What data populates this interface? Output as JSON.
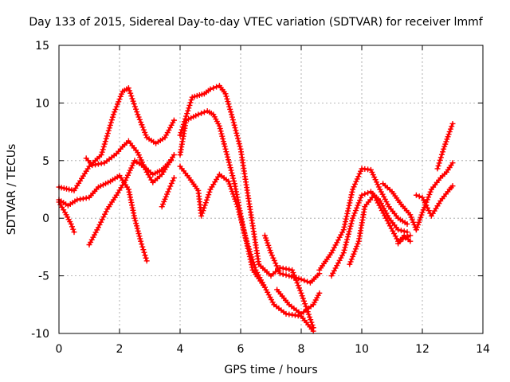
{
  "chart_data": {
    "type": "scatter",
    "title": "Day 133 of 2015, Sidereal Day-to-day VTEC variation (SDTVAR) for receiver lmmf",
    "xlabel": "GPS time / hours",
    "ylabel": "SDTVAR / TECUs",
    "xlim": [
      0,
      14
    ],
    "ylim": [
      -10,
      15
    ],
    "xticks": [
      "0",
      "2",
      "4",
      "6",
      "8",
      "10",
      "12",
      "14"
    ],
    "yticks": [
      "-10",
      "-5",
      "0",
      "5",
      "10",
      "15"
    ],
    "grid": true,
    "marker": "+",
    "color": "#ff0000",
    "series": [
      {
        "x": [
          0.0,
          0.5,
          1.0,
          1.4,
          1.8,
          2.1,
          2.3,
          2.6,
          2.9,
          3.2,
          3.5,
          3.8
        ],
        "y": [
          2.7,
          2.4,
          4.5,
          5.5,
          9.0,
          11.0,
          11.3,
          9.0,
          7.0,
          6.5,
          7.0,
          8.5
        ]
      },
      {
        "x": [
          0.9,
          1.1,
          1.5,
          1.9,
          2.1,
          2.3,
          2.6,
          2.9,
          3.1,
          3.4,
          3.8
        ],
        "y": [
          5.2,
          4.6,
          4.8,
          5.6,
          6.2,
          6.7,
          5.7,
          4.0,
          3.1,
          3.8,
          5.5
        ]
      },
      {
        "x": [
          0.0,
          0.3,
          0.6,
          1.0,
          1.3,
          1.7,
          2.0,
          2.3,
          2.5,
          2.7,
          2.9
        ],
        "y": [
          1.6,
          1.1,
          1.6,
          1.8,
          2.7,
          3.2,
          3.7,
          2.5,
          0.0,
          -2.0,
          -3.7
        ]
      },
      {
        "x": [
          0.0,
          0.2,
          0.4,
          0.5
        ],
        "y": [
          1.4,
          0.5,
          -0.5,
          -1.2
        ]
      },
      {
        "x": [
          1.0,
          1.3,
          1.6,
          1.9,
          2.2,
          2.5,
          2.8,
          3.1,
          3.4,
          3.7
        ],
        "y": [
          -2.3,
          -0.8,
          0.8,
          2.0,
          3.3,
          5.0,
          4.5,
          3.8,
          4.2,
          5.0
        ]
      },
      {
        "x": [
          3.4,
          3.6,
          3.8
        ],
        "y": [
          1.0,
          2.3,
          3.5
        ]
      },
      {
        "x": [
          4.0,
          4.4,
          4.8,
          5.0,
          5.3,
          5.5,
          5.7,
          6.0,
          6.3,
          6.6,
          7.0,
          7.3,
          7.7,
          8.0,
          8.4
        ],
        "y": [
          7.2,
          10.5,
          10.8,
          11.2,
          11.5,
          10.8,
          9.0,
          6.0,
          1.0,
          -4.0,
          -5.0,
          -4.3,
          -4.5,
          -6.5,
          -9.5
        ]
      },
      {
        "x": [
          4.0,
          4.2,
          4.6,
          4.9,
          5.1,
          5.3,
          5.5,
          5.8,
          6.1,
          6.4,
          6.8,
          7.1,
          7.5,
          8.0,
          8.4
        ],
        "y": [
          5.5,
          8.5,
          9.0,
          9.3,
          9.0,
          8.0,
          6.0,
          3.0,
          -1.0,
          -4.5,
          -6.0,
          -7.5,
          -8.3,
          -8.5,
          -9.8
        ]
      },
      {
        "x": [
          4.0,
          4.3,
          4.6,
          4.7,
          5.0,
          5.3,
          5.6,
          5.9,
          6.2,
          6.5,
          6.8
        ],
        "y": [
          4.5,
          3.5,
          2.4,
          0.2,
          2.5,
          3.8,
          3.2,
          1.0,
          -2.0,
          -4.5,
          -6.0
        ]
      },
      {
        "x": [
          6.8,
          7.0,
          7.3,
          7.6,
          8.0,
          8.3,
          8.6
        ],
        "y": [
          -1.5,
          -3.0,
          -4.8,
          -5.0,
          -5.3,
          -5.6,
          -4.8
        ]
      },
      {
        "x": [
          7.2,
          7.6,
          8.0,
          8.4,
          8.6
        ],
        "y": [
          -6.2,
          -7.5,
          -8.3,
          -7.5,
          -6.5
        ]
      },
      {
        "x": [
          8.6,
          9.0,
          9.4,
          9.7,
          10.0,
          10.3,
          10.6,
          10.9,
          11.2,
          11.5
        ],
        "y": [
          -4.5,
          -3.0,
          -1.0,
          2.5,
          4.3,
          4.2,
          2.5,
          1.0,
          0.0,
          -0.5
        ]
      },
      {
        "x": [
          9.0,
          9.4,
          9.7,
          10.0,
          10.3,
          10.6,
          10.9,
          11.2,
          11.5
        ],
        "y": [
          -5.0,
          -3.0,
          0.0,
          2.0,
          2.3,
          1.5,
          0.0,
          -1.0,
          -1.2
        ]
      },
      {
        "x": [
          9.6,
          9.9,
          10.1,
          10.4,
          10.8,
          11.2,
          11.6
        ],
        "y": [
          -4.0,
          -2.0,
          1.0,
          2.0,
          0.0,
          -2.0,
          -1.5
        ]
      },
      {
        "x": [
          10.7,
          11.0,
          11.3,
          11.6,
          11.8
        ],
        "y": [
          3.0,
          2.3,
          1.2,
          0.3,
          -1.0
        ]
      },
      {
        "x": [
          11.2,
          11.4,
          11.6
        ],
        "y": [
          -2.2,
          -1.5,
          -2.0
        ]
      },
      {
        "x": [
          11.8,
          12.0,
          12.3,
          12.6,
          12.9,
          13.0
        ],
        "y": [
          2.0,
          1.8,
          0.2,
          1.5,
          2.5,
          2.8
        ]
      },
      {
        "x": [
          11.8,
          12.0,
          12.3,
          12.6,
          12.8,
          13.0
        ],
        "y": [
          -1.0,
          0.5,
          2.5,
          3.5,
          4.0,
          4.8
        ]
      },
      {
        "x": [
          12.5,
          12.7,
          12.9,
          13.0
        ],
        "y": [
          4.3,
          6.0,
          7.5,
          8.2
        ]
      }
    ]
  }
}
